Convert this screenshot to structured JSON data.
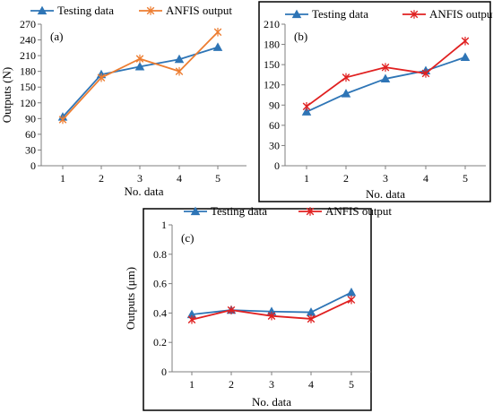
{
  "chart_data": [
    {
      "type": "line",
      "panel_label": "(a)",
      "categories": [
        "1",
        "2",
        "3",
        "4",
        "5"
      ],
      "yticks": [
        "0",
        "30",
        "60",
        "90",
        "120",
        "150",
        "180",
        "210",
        "240",
        "270"
      ],
      "ylim": [
        0,
        270
      ],
      "xlabel": "No. data",
      "ylabel": "Outputs (N)",
      "legend_position": "top",
      "frame": false,
      "series": [
        {
          "name": "Testing data",
          "color": "#2E75B6",
          "marker": "triangle",
          "values": [
            93,
            174,
            189,
            203,
            226
          ]
        },
        {
          "name": "ANFIS output",
          "color": "#ED7D31",
          "marker": "x",
          "values": [
            88,
            168,
            204,
            180,
            255
          ]
        }
      ]
    },
    {
      "type": "line",
      "panel_label": "(b)",
      "categories": [
        "1",
        "2",
        "3",
        "4",
        "5"
      ],
      "yticks": [
        "0",
        "30",
        "60",
        "90",
        "120",
        "150",
        "180",
        "210"
      ],
      "ylim": [
        0,
        210
      ],
      "xlabel": "No. data",
      "ylabel": "",
      "legend_position": "top",
      "frame": true,
      "series": [
        {
          "name": "Testing data",
          "color": "#2E75B6",
          "marker": "triangle",
          "values": [
            80,
            107,
            129,
            141,
            161
          ]
        },
        {
          "name": "ANFIS output",
          "color": "#E02020",
          "marker": "x",
          "values": [
            88,
            131,
            146,
            137,
            185
          ]
        }
      ]
    },
    {
      "type": "line",
      "panel_label": "(c)",
      "categories": [
        "1",
        "2",
        "3",
        "4",
        "5"
      ],
      "yticks": [
        "0",
        "0.2",
        "0.4",
        "0.6",
        "0.8",
        "1"
      ],
      "ylim": [
        0,
        1
      ],
      "xlabel": "No. data",
      "ylabel": "Outputs (μm)",
      "legend_position": "top",
      "frame": true,
      "series": [
        {
          "name": "Testing data",
          "color": "#2E75B6",
          "marker": "triangle",
          "values": [
            0.39,
            0.42,
            0.41,
            0.405,
            0.54
          ]
        },
        {
          "name": "ANFIS output",
          "color": "#E02020",
          "marker": "x",
          "values": [
            0.355,
            0.42,
            0.38,
            0.36,
            0.49
          ]
        }
      ]
    }
  ]
}
